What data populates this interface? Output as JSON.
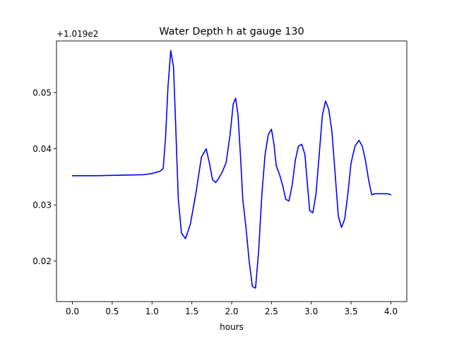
{
  "chart_data": {
    "type": "line",
    "title": "Water Depth h at gauge 130",
    "xlabel": "hours",
    "ylabel": "",
    "offset_label": "+1.019e2",
    "xlim": [
      -0.2,
      4.2
    ],
    "ylim": [
      0.0128,
      0.0592
    ],
    "x_ticks": [
      0.0,
      0.5,
      1.0,
      1.5,
      2.0,
      2.5,
      3.0,
      3.5,
      4.0
    ],
    "x_tick_labels": [
      "0.0",
      "0.5",
      "1.0",
      "1.5",
      "2.0",
      "2.5",
      "3.0",
      "3.5",
      "4.0"
    ],
    "y_ticks": [
      0.02,
      0.03,
      0.04,
      0.05
    ],
    "y_tick_labels": [
      "0.02",
      "0.03",
      "0.04",
      "0.05"
    ],
    "grid": false,
    "series": [
      {
        "color": "#0000ff",
        "x": [
          0.0,
          0.3,
          0.6,
          0.9,
          1.0,
          1.1,
          1.14,
          1.17,
          1.2,
          1.235,
          1.27,
          1.3,
          1.33,
          1.37,
          1.42,
          1.48,
          1.55,
          1.62,
          1.68,
          1.72,
          1.76,
          1.8,
          1.84,
          1.88,
          1.93,
          1.98,
          2.02,
          2.05,
          2.08,
          2.11,
          2.14,
          2.18,
          2.22,
          2.26,
          2.3,
          2.34,
          2.38,
          2.42,
          2.46,
          2.5,
          2.53,
          2.56,
          2.6,
          2.64,
          2.68,
          2.72,
          2.76,
          2.8,
          2.84,
          2.88,
          2.92,
          2.95,
          2.98,
          3.02,
          3.06,
          3.1,
          3.14,
          3.18,
          3.22,
          3.26,
          3.3,
          3.34,
          3.38,
          3.42,
          3.46,
          3.5,
          3.55,
          3.6,
          3.64,
          3.68,
          3.72,
          3.76,
          3.8,
          3.84,
          3.88,
          3.92,
          3.96,
          4.0
        ],
        "values": [
          0.0352,
          0.0352,
          0.0353,
          0.0354,
          0.0356,
          0.036,
          0.0365,
          0.042,
          0.051,
          0.0575,
          0.0545,
          0.043,
          0.031,
          0.025,
          0.024,
          0.0265,
          0.032,
          0.0385,
          0.04,
          0.0375,
          0.0345,
          0.034,
          0.0348,
          0.0358,
          0.0375,
          0.0425,
          0.048,
          0.049,
          0.046,
          0.039,
          0.031,
          0.026,
          0.02,
          0.0155,
          0.0152,
          0.022,
          0.032,
          0.039,
          0.0425,
          0.0435,
          0.041,
          0.037,
          0.0355,
          0.0335,
          0.031,
          0.0307,
          0.0335,
          0.038,
          0.0405,
          0.0408,
          0.039,
          0.034,
          0.029,
          0.0286,
          0.032,
          0.039,
          0.046,
          0.0485,
          0.047,
          0.043,
          0.0355,
          0.028,
          0.026,
          0.0275,
          0.032,
          0.0375,
          0.0405,
          0.0415,
          0.0405,
          0.038,
          0.0345,
          0.0318,
          0.032,
          0.032,
          0.032,
          0.032,
          0.032,
          0.0318
        ]
      }
    ]
  }
}
